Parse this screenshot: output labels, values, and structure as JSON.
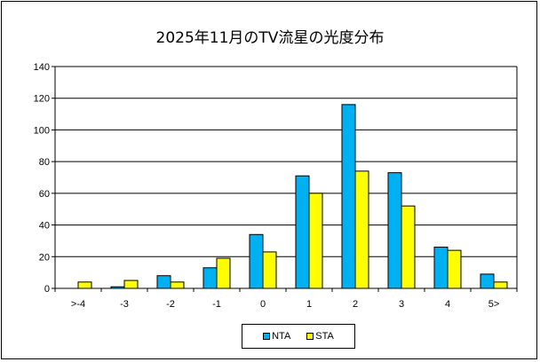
{
  "chart_data": {
    "type": "bar",
    "title": "2025年11月のTV流星の光度分布",
    "categories": [
      ">-4",
      "-3",
      "-2",
      "-1",
      "0",
      "1",
      "2",
      "3",
      "4",
      "5>"
    ],
    "series": [
      {
        "name": "NTA",
        "color": "#00b0f0",
        "values": [
          0,
          1,
          8,
          13,
          34,
          71,
          116,
          73,
          26,
          9
        ]
      },
      {
        "name": "STA",
        "color": "#ffff00",
        "values": [
          4,
          5,
          4,
          19,
          23,
          60,
          74,
          52,
          24,
          4
        ]
      }
    ],
    "yticks": [
      "0",
      "20",
      "40",
      "60",
      "80",
      "100",
      "120",
      "140"
    ],
    "ylim": [
      0,
      140
    ],
    "grid": true,
    "legend_position": "bottom"
  }
}
